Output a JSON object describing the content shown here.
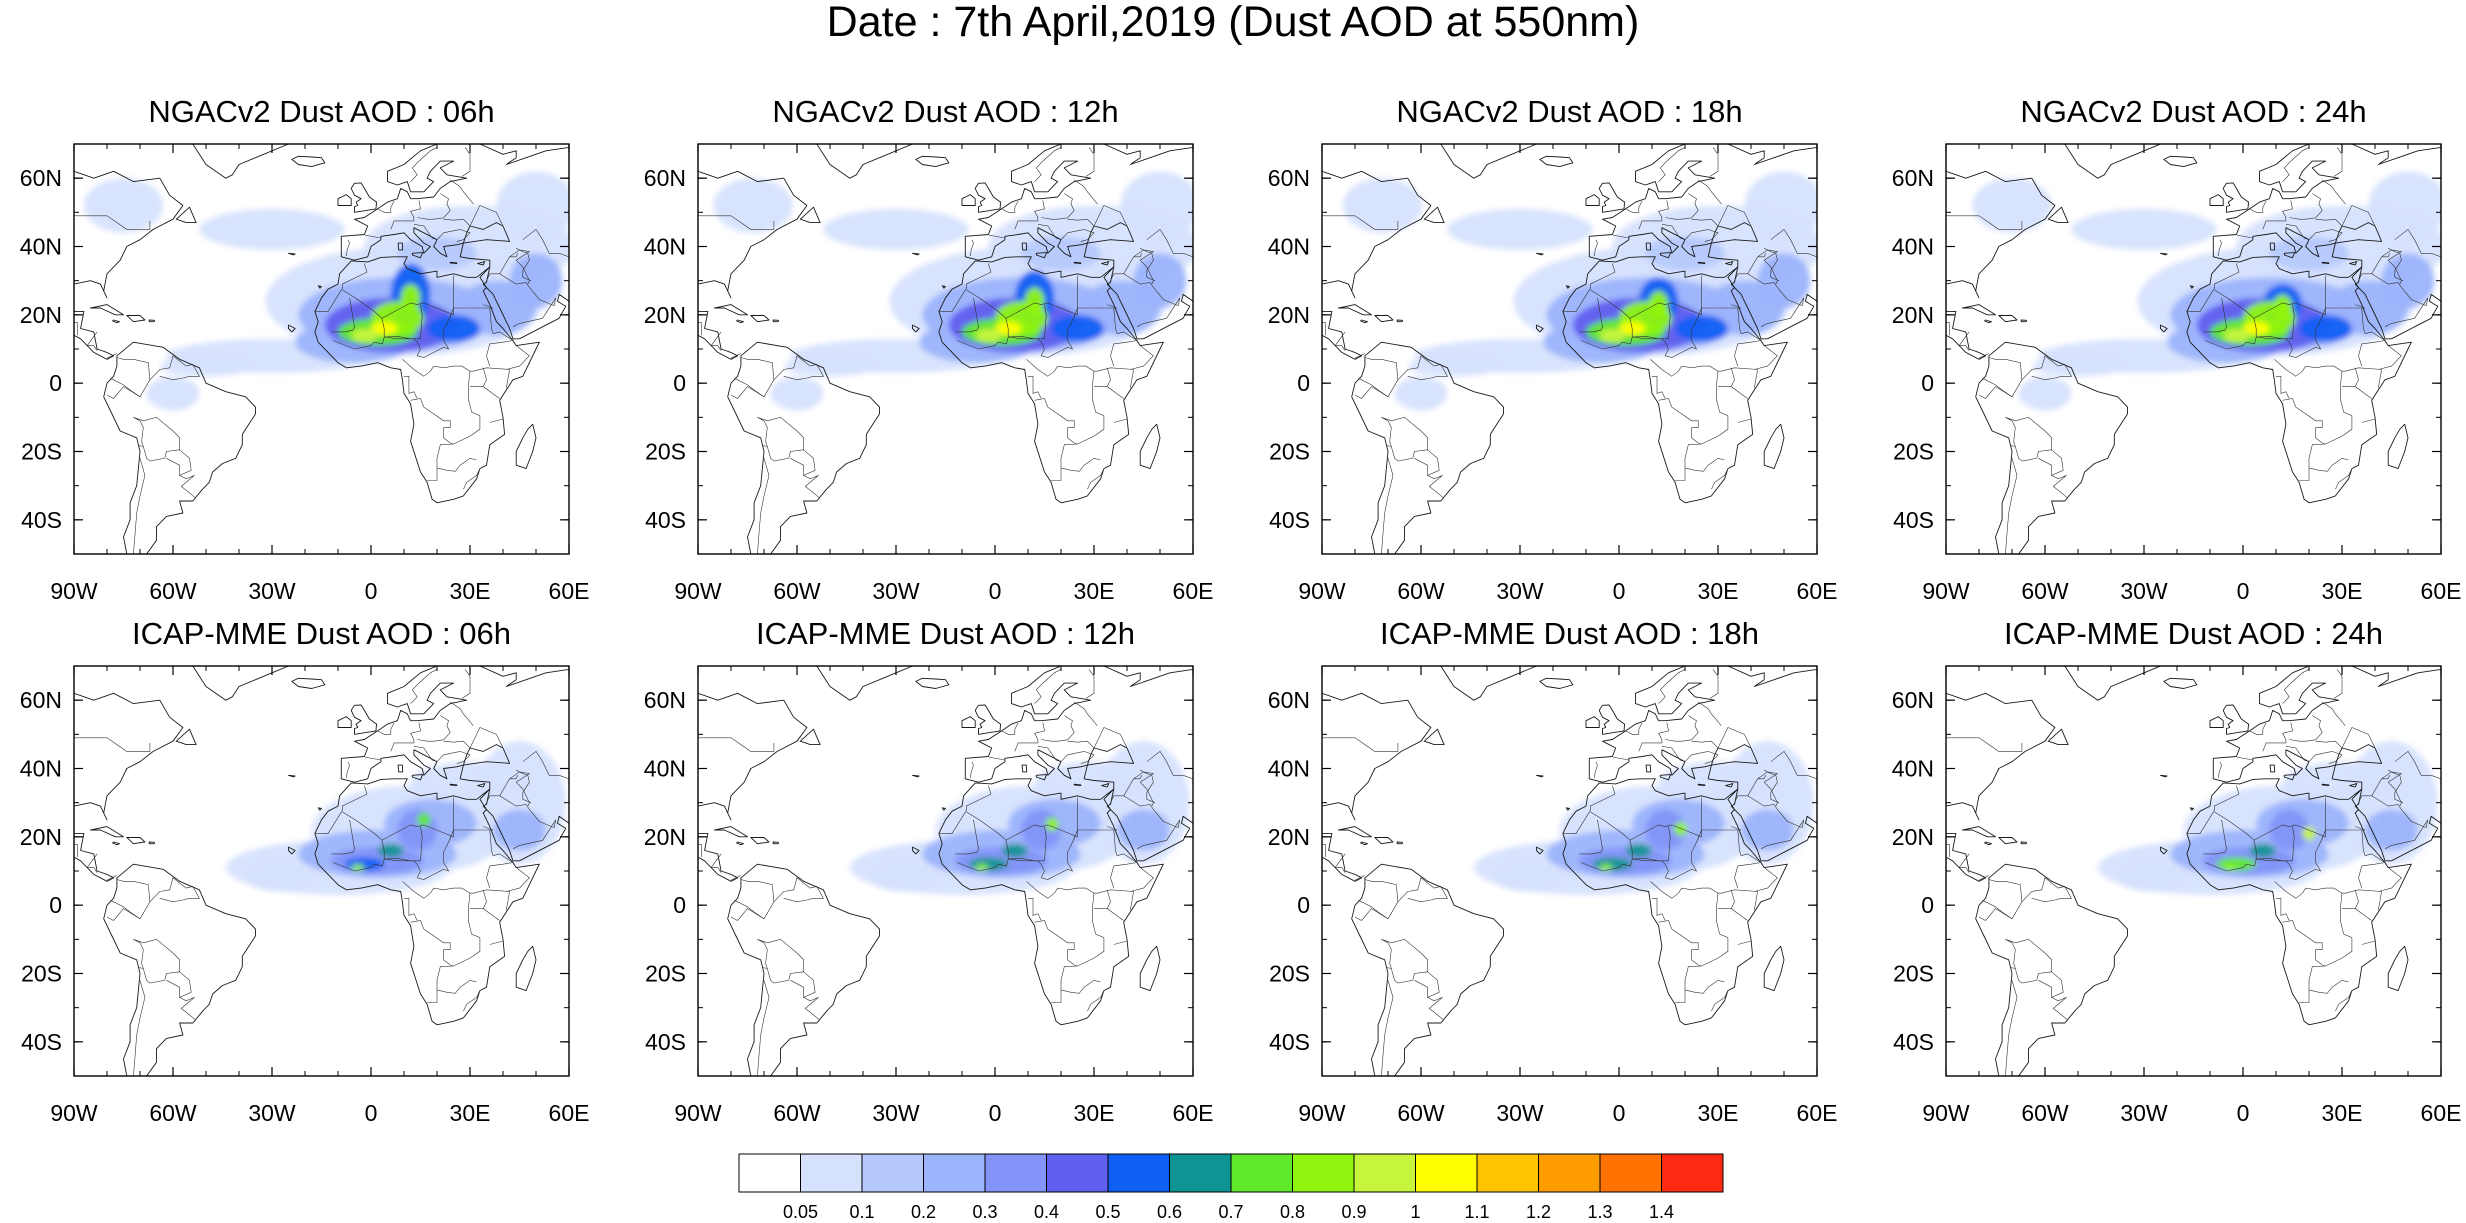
{
  "title": "Date : 7th April,2019 (Dust AOD at 550nm)",
  "axes": {
    "lon_ticks": [
      "90W",
      "60W",
      "30W",
      "0",
      "30E",
      "60E"
    ],
    "lat_ticks": [
      "60N",
      "40N",
      "20N",
      "0",
      "20S",
      "40S"
    ],
    "lon_range_deg": [
      -90,
      60
    ],
    "lat_range_deg": [
      -50,
      70
    ]
  },
  "panels": [
    {
      "title": "NGACv2 Dust AOD : 06h",
      "model": "ngac",
      "hour": 6
    },
    {
      "title": "NGACv2 Dust AOD : 12h",
      "model": "ngac",
      "hour": 12
    },
    {
      "title": "NGACv2 Dust AOD : 18h",
      "model": "ngac",
      "hour": 18
    },
    {
      "title": "NGACv2 Dust AOD : 24h",
      "model": "ngac",
      "hour": 24
    },
    {
      "title": "ICAP-MME Dust AOD : 06h",
      "model": "icap",
      "hour": 6
    },
    {
      "title": "ICAP-MME Dust AOD : 12h",
      "model": "icap",
      "hour": 12
    },
    {
      "title": "ICAP-MME Dust AOD : 18h",
      "model": "icap",
      "hour": 18
    },
    {
      "title": "ICAP-MME Dust AOD : 24h",
      "model": "icap",
      "hour": 24
    }
  ],
  "colorbar": {
    "labels": [
      "0.05",
      "0.1",
      "0.2",
      "0.3",
      "0.4",
      "0.5",
      "0.6",
      "0.7",
      "0.8",
      "0.9",
      "1",
      "1.1",
      "1.2",
      "1.3",
      "1.4"
    ],
    "colors": [
      "#ffffff",
      "#d6e2fd",
      "#b6c9fd",
      "#9cb4fc",
      "#8393f8",
      "#6060ef",
      "#0f5ff3",
      "#0f9494",
      "#5fe92d",
      "#8ff40f",
      "#c7f53c",
      "#ffff00",
      "#ffc400",
      "#ff9d00",
      "#ff7100",
      "#ff2a14"
    ]
  }
}
